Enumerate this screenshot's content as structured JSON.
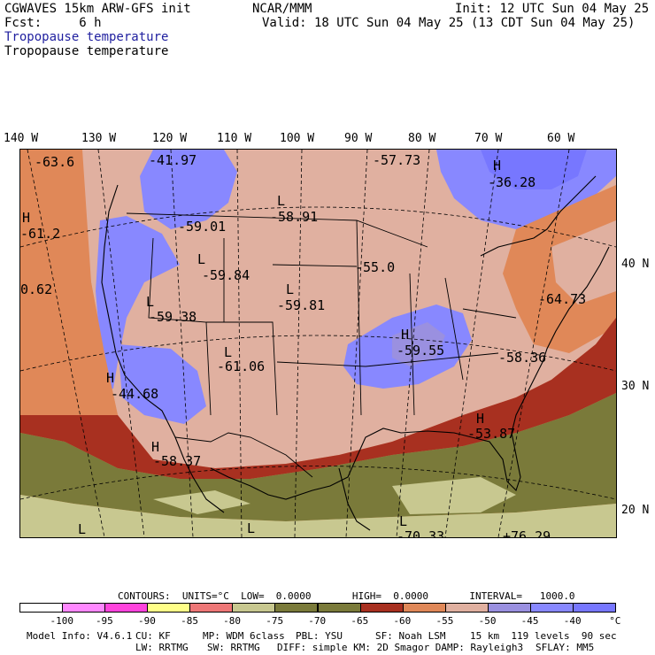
{
  "header": {
    "left_line1": "CGWAVES 15km ARW-GFS init",
    "left_line2": "Fcst:     6 h",
    "center": "NCAR/MMM",
    "right_line1": "Init: 12 UTC Sun 04 May 25",
    "right_line2": "Valid: 18 UTC Sun 04 May 25 (13 CDT Sun 04 May 25)",
    "field_label": "Tropopause temperature",
    "field_label_2": "Tropopause temperature"
  },
  "axes": {
    "lon_labels": [
      "140 W",
      "130 W",
      "120 W",
      "110 W",
      "100 W",
      "90 W",
      "80 W",
      "70 W",
      "60 W"
    ],
    "lat_labels": [
      "40 N",
      "30 N",
      "20 N"
    ]
  },
  "map_labels": [
    {
      "text": "-63.6"
    },
    {
      "text": "-41.97"
    },
    {
      "text": "-57.73"
    },
    {
      "text": "H"
    },
    {
      "text": "-36.28"
    },
    {
      "text": "H"
    },
    {
      "text": "-61.2"
    },
    {
      "text": "L"
    },
    {
      "text": "-58.91"
    },
    {
      "text": "-59.01"
    },
    {
      "text": "L"
    },
    {
      "text": "-59.84"
    },
    {
      "text": "-55.0"
    },
    {
      "text": "0.62"
    },
    {
      "text": "L"
    },
    {
      "text": "-59.81"
    },
    {
      "text": "-64.73"
    },
    {
      "text": "L"
    },
    {
      "text": "-59.38"
    },
    {
      "text": "H"
    },
    {
      "text": "-59.55"
    },
    {
      "text": "L"
    },
    {
      "text": "-61.06"
    },
    {
      "text": "-58.36"
    },
    {
      "text": "H"
    },
    {
      "text": "-44.68"
    },
    {
      "text": "H"
    },
    {
      "text": "-53.87"
    },
    {
      "text": "H"
    },
    {
      "text": "-58.37"
    },
    {
      "text": "L"
    },
    {
      "text": "L"
    },
    {
      "text": "L"
    },
    {
      "text": "-70.33"
    },
    {
      "text": "+76.29"
    }
  ],
  "contours": {
    "text": "CONTOURS:  UNITS=°C  LOW=  0.0000       HIGH=  0.0000       INTERVAL=   1000.0"
  },
  "colorbar": {
    "colors": [
      "#ffffff",
      "#ff88ff",
      "#ff44dd",
      "#ffff88",
      "#ee7777",
      "#c8c890",
      "#7a7a3a",
      "#7a7a3a",
      "#a83020",
      "#e08858",
      "#e0b0a0",
      "#9a90e0",
      "#8888ff",
      "#7777ff"
    ],
    "labels": [
      "-100",
      "-95",
      "-90",
      "-85",
      "-80",
      "-75",
      "-70",
      "-65",
      "-60",
      "-55",
      "-50",
      "-45",
      "-40",
      "°C"
    ]
  },
  "footer": {
    "model": "Model Info: V4.6.1",
    "cu": "CU: KF",
    "mp": "MP: WDM 6class",
    "pbl": "PBL: YSU",
    "sf": "SF: Noah LSM",
    "res": "15 km  119 levels  90 sec",
    "lw": "LW: RRTMG",
    "sw": "SW: RRTMG",
    "diff": "DIFF: simple KM: 2D Smagor DAMP: Rayleigh3",
    "sflay": "SFLAY: MM5"
  }
}
